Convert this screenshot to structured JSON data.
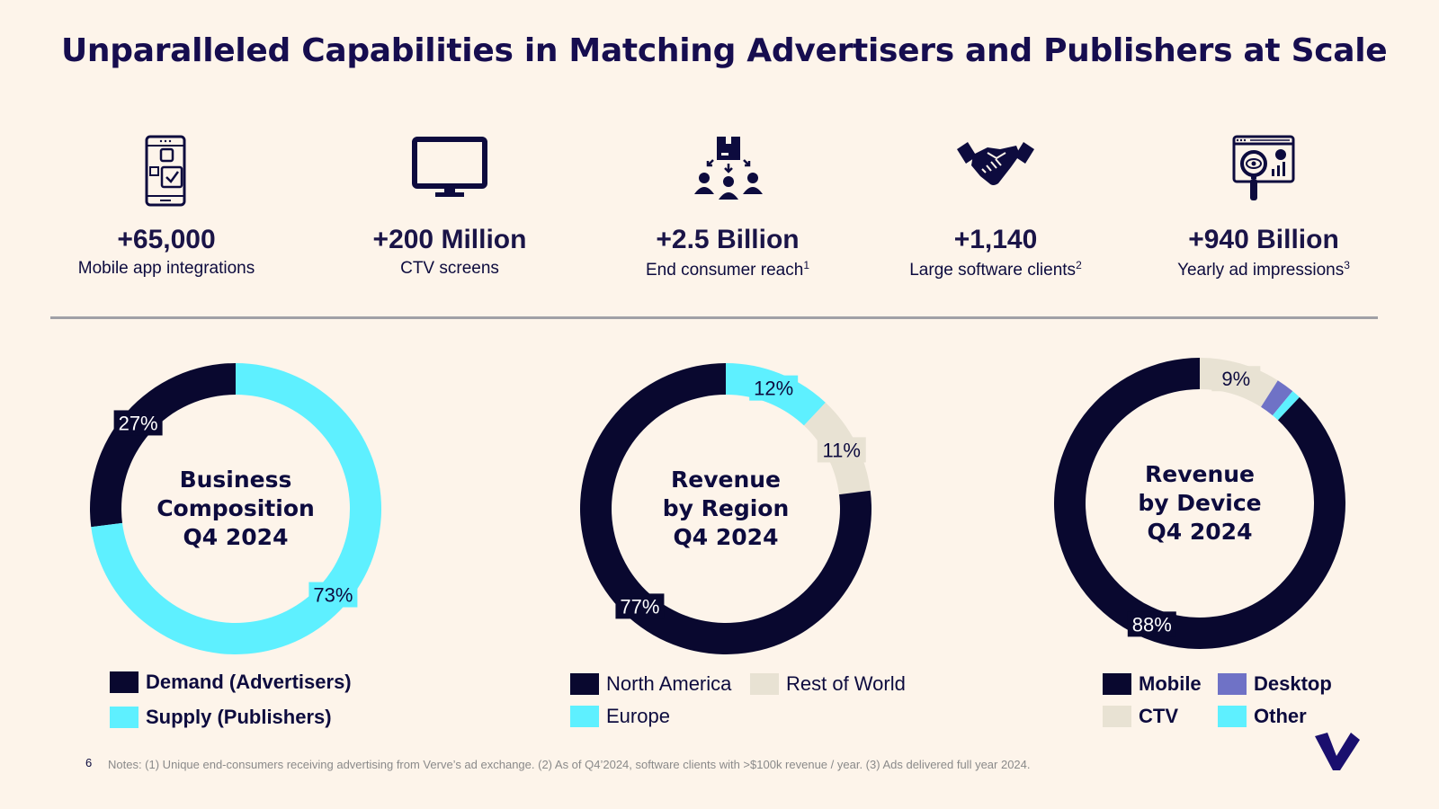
{
  "title": "Unparalleled Capabilities in Matching Advertisers and Publishers at Scale",
  "stats": [
    {
      "icon": "mobile-app-icon",
      "value": "+65,000",
      "label": "Mobile app integrations",
      "sup": ""
    },
    {
      "icon": "tv-monitor-icon",
      "value": "+200 Million",
      "label": "CTV screens",
      "sup": ""
    },
    {
      "icon": "consumer-reach-icon",
      "value": "+2.5 Billion",
      "label": "End consumer reach",
      "sup": "1"
    },
    {
      "icon": "handshake-icon",
      "value": "+1,140",
      "label": "Large software clients",
      "sup": "2"
    },
    {
      "icon": "ad-analytics-icon",
      "value": "+940 Billion",
      "label": "Yearly ad impressions",
      "sup": "3"
    }
  ],
  "colors": {
    "navy": "#09082f",
    "cyan": "#5ef0ff",
    "beige": "#e8e2d3",
    "periwinkle": "#6f72c6",
    "background": "#fdf4ea"
  },
  "chart_data": [
    {
      "type": "pie",
      "title": "Business Composition Q4 2024",
      "title_lines": [
        "Business",
        "Composition",
        "Q4 2024"
      ],
      "categories": [
        "Demand (Advertisers)",
        "Supply (Publishers)"
      ],
      "values": [
        27,
        73
      ],
      "labels": [
        "27%",
        "73%"
      ],
      "colors": [
        "#09082f",
        "#5ef0ff"
      ],
      "legend": "bottom"
    },
    {
      "type": "pie",
      "title": "Revenue by Region Q4 2024",
      "title_lines": [
        "Revenue",
        "by Region",
        "Q4 2024"
      ],
      "categories": [
        "North America",
        "Europe",
        "Rest of World"
      ],
      "values": [
        77,
        12,
        11
      ],
      "labels": [
        "77%",
        "12%",
        "11%"
      ],
      "colors": [
        "#09082f",
        "#5ef0ff",
        "#e8e2d3"
      ],
      "legend": "bottom"
    },
    {
      "type": "pie",
      "title": "Revenue by Device Q4 2024",
      "title_lines": [
        "Revenue",
        "by Device",
        "Q4 2024"
      ],
      "categories": [
        "Mobile",
        "CTV",
        "Desktop",
        "Other"
      ],
      "values": [
        88,
        9,
        2,
        1
      ],
      "labels": [
        "88%",
        "9%",
        "",
        ""
      ],
      "colors": [
        "#09082f",
        "#e8e2d3",
        "#6f72c6",
        "#5ef0ff"
      ],
      "legend": "bottom"
    }
  ],
  "footnote": "Notes: (1) Unique end-consumers receiving advertising from Verve’s ad exchange. (2) As of Q4’2024, software clients with >$100k revenue / year. (3) Ads delivered full year 2024.",
  "page_number": "6",
  "logo": "verve-logo"
}
